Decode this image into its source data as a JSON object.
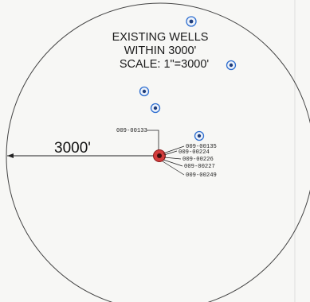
{
  "title": {
    "line1": "EXISTING WELLS",
    "line2": "WITHIN 3000'",
    "line3": "SCALE: 1\"=3000'"
  },
  "radius_label": "3000'",
  "center_well": {
    "label": "009-00133",
    "color": "#c92a2a"
  },
  "cluster_labels": [
    "009-00135",
    "009-00224",
    "009-00226",
    "009-00227",
    "009-00249"
  ],
  "colors": {
    "circle": "#444444",
    "well_marker": "#2f6fd0",
    "center_fill": "#d33b3b"
  }
}
